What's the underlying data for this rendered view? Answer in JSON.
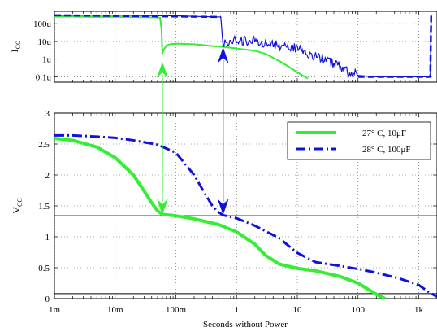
{
  "chart_data": [
    {
      "type": "line",
      "xscale": "log",
      "yscale": "log",
      "ylabel": "I",
      "ylabel_sub": "CC",
      "xlim": [
        0.001,
        2000
      ],
      "ylim": [
        5e-08,
        0.0005
      ],
      "yticks": [
        {
          "value": 1e-07,
          "label": "0.1u"
        },
        {
          "value": 1e-06,
          "label": "1u"
        },
        {
          "value": 1e-05,
          "label": "10u"
        },
        {
          "value": 0.0001,
          "label": "100u"
        }
      ],
      "grid": true,
      "series": [
        {
          "color": "#33ee33",
          "style": "solid",
          "points": [
            [
              0.001,
              0.00025
            ],
            [
              0.002,
              0.00025
            ],
            [
              0.005,
              0.00024
            ],
            [
              0.01,
              0.00024
            ],
            [
              0.02,
              0.000235
            ],
            [
              0.04,
              0.00023
            ],
            [
              0.055,
              0.00022
            ],
            [
              0.058,
              5e-05
            ],
            [
              0.06,
              2e-06
            ],
            [
              0.062,
              3e-06
            ],
            [
              0.07,
              6e-06
            ],
            [
              0.08,
              7e-06
            ],
            [
              0.1,
              7.5e-06
            ],
            [
              0.2,
              7e-06
            ],
            [
              0.4,
              5.5e-06
            ],
            [
              0.6,
              5e-06
            ],
            [
              1,
              4e-06
            ],
            [
              2,
              3e-06
            ],
            [
              3,
              2e-06
            ],
            [
              5,
              8e-07
            ],
            [
              7,
              4e-07
            ],
            [
              10,
              1.8e-07
            ],
            [
              15,
              8e-08
            ]
          ]
        },
        {
          "color": "#1111dd",
          "style": "dash-noisy",
          "points": [
            [
              0.001,
              0.0003
            ],
            [
              0.01,
              0.0003
            ],
            [
              0.1,
              0.00028
            ],
            [
              0.3,
              0.00025
            ],
            [
              0.55,
              0.00024
            ],
            [
              0.6,
              5e-06
            ],
            [
              0.62,
              9e-06
            ],
            [
              1,
              1.2e-05
            ],
            [
              2,
              1e-05
            ],
            [
              3,
              8e-06
            ],
            [
              5,
              6e-06
            ],
            [
              10,
              4e-06
            ],
            [
              20,
              1.5e-06
            ],
            [
              40,
              6e-07
            ],
            [
              70,
              2e-07
            ],
            [
              100,
              1.2e-07
            ],
            [
              200,
              1e-07
            ],
            [
              1000,
              1e-07
            ],
            [
              1550,
              1e-07
            ],
            [
              1600,
              0.0003
            ]
          ]
        }
      ]
    },
    {
      "type": "line",
      "xscale": "log",
      "xlim": [
        0.001,
        2000
      ],
      "ylim": [
        0,
        3
      ],
      "xlabel": "Seconds without Power",
      "ylabel": "V",
      "ylabel_sub": "CC",
      "xticks": [
        {
          "value": 0.001,
          "label": "1m"
        },
        {
          "value": 0.01,
          "label": "10m"
        },
        {
          "value": 0.1,
          "label": "100m"
        },
        {
          "value": 1,
          "label": "1"
        },
        {
          "value": 10,
          "label": "10"
        },
        {
          "value": 100,
          "label": "100"
        },
        {
          "value": 1000,
          "label": "1k"
        }
      ],
      "yticks": [
        0,
        0.5,
        1,
        1.5,
        2,
        2.5,
        3
      ],
      "hlines": [
        1.34,
        0.08
      ],
      "grid": true,
      "legend_position": "top-right",
      "series": [
        {
          "name": "27° C, 10μF",
          "color": "#33ee33",
          "style": "solid",
          "points": [
            [
              0.001,
              2.59
            ],
            [
              0.002,
              2.56
            ],
            [
              0.005,
              2.45
            ],
            [
              0.01,
              2.28
            ],
            [
              0.02,
              2.0
            ],
            [
              0.03,
              1.74
            ],
            [
              0.04,
              1.55
            ],
            [
              0.05,
              1.42
            ],
            [
              0.06,
              1.36
            ],
            [
              0.08,
              1.35
            ],
            [
              0.1,
              1.34
            ],
            [
              0.2,
              1.29
            ],
            [
              0.5,
              1.2
            ],
            [
              1,
              1.08
            ],
            [
              2,
              0.88
            ],
            [
              3,
              0.7
            ],
            [
              5,
              0.56
            ],
            [
              10,
              0.49
            ],
            [
              20,
              0.45
            ],
            [
              50,
              0.36
            ],
            [
              100,
              0.25
            ],
            [
              200,
              0.07
            ],
            [
              280,
              0.0
            ]
          ]
        },
        {
          "name": "28° C, 100μF",
          "color": "#1111dd",
          "style": "dashdot",
          "points": [
            [
              0.001,
              2.64
            ],
            [
              0.002,
              2.64
            ],
            [
              0.005,
              2.62
            ],
            [
              0.01,
              2.6
            ],
            [
              0.02,
              2.56
            ],
            [
              0.05,
              2.49
            ],
            [
              0.1,
              2.36
            ],
            [
              0.2,
              2.0
            ],
            [
              0.3,
              1.7
            ],
            [
              0.4,
              1.5
            ],
            [
              0.5,
              1.4
            ],
            [
              0.6,
              1.35
            ],
            [
              1,
              1.3
            ],
            [
              2,
              1.18
            ],
            [
              5,
              0.98
            ],
            [
              10,
              0.74
            ],
            [
              20,
              0.59
            ],
            [
              50,
              0.53
            ],
            [
              100,
              0.48
            ],
            [
              200,
              0.42
            ],
            [
              500,
              0.32
            ],
            [
              1000,
              0.22
            ],
            [
              1500,
              0.1
            ],
            [
              2000,
              0.03
            ]
          ]
        }
      ]
    }
  ]
}
